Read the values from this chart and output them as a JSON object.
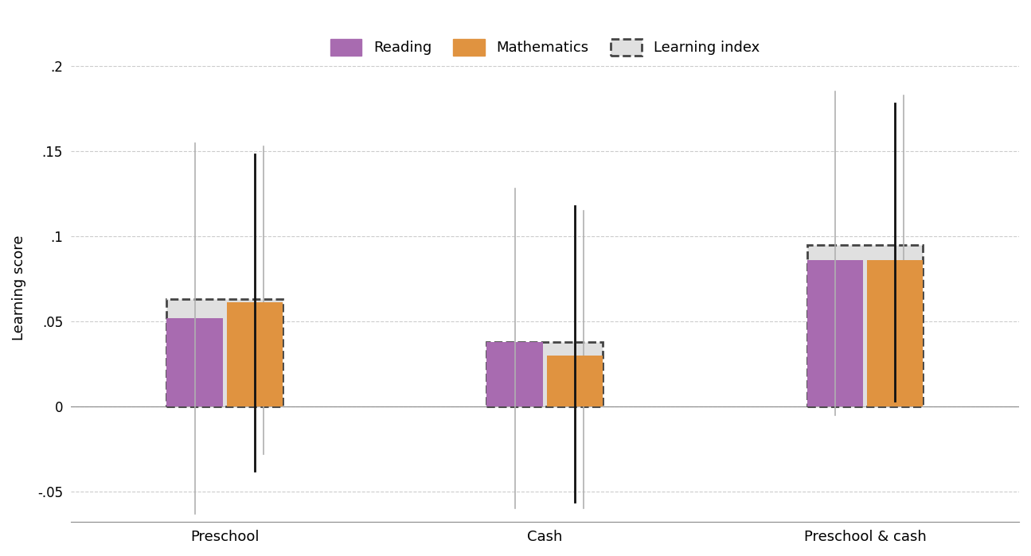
{
  "groups": [
    "Preschool",
    "Cash",
    "Preschool & cash"
  ],
  "reading_values": [
    0.052,
    0.038,
    0.086
  ],
  "math_values": [
    0.061,
    0.03,
    0.086
  ],
  "index_values": [
    0.063,
    0.038,
    0.095
  ],
  "reading_ci_low": [
    -0.063,
    -0.06,
    -0.005
  ],
  "reading_ci_high": [
    0.155,
    0.128,
    0.185
  ],
  "math_ci_low": [
    -0.038,
    -0.056,
    0.003
  ],
  "math_ci_high": [
    0.148,
    0.118,
    0.178
  ],
  "index_ci_low": [
    -0.028,
    -0.06,
    0.005
  ],
  "index_ci_high": [
    0.153,
    0.115,
    0.183
  ],
  "reading_color": "#a86bb0",
  "math_color": "#e09340",
  "index_color": "#e0e0e0",
  "ylabel": "Learning score",
  "ylim": [
    -0.068,
    0.208
  ],
  "yticks": [
    -0.05,
    0.0,
    0.05,
    0.1,
    0.15,
    0.2
  ],
  "ytick_labels": [
    "-.05",
    "0",
    ".05",
    ".1",
    ".15",
    ".2"
  ],
  "background_color": "#ffffff",
  "grid_color": "#cccccc"
}
